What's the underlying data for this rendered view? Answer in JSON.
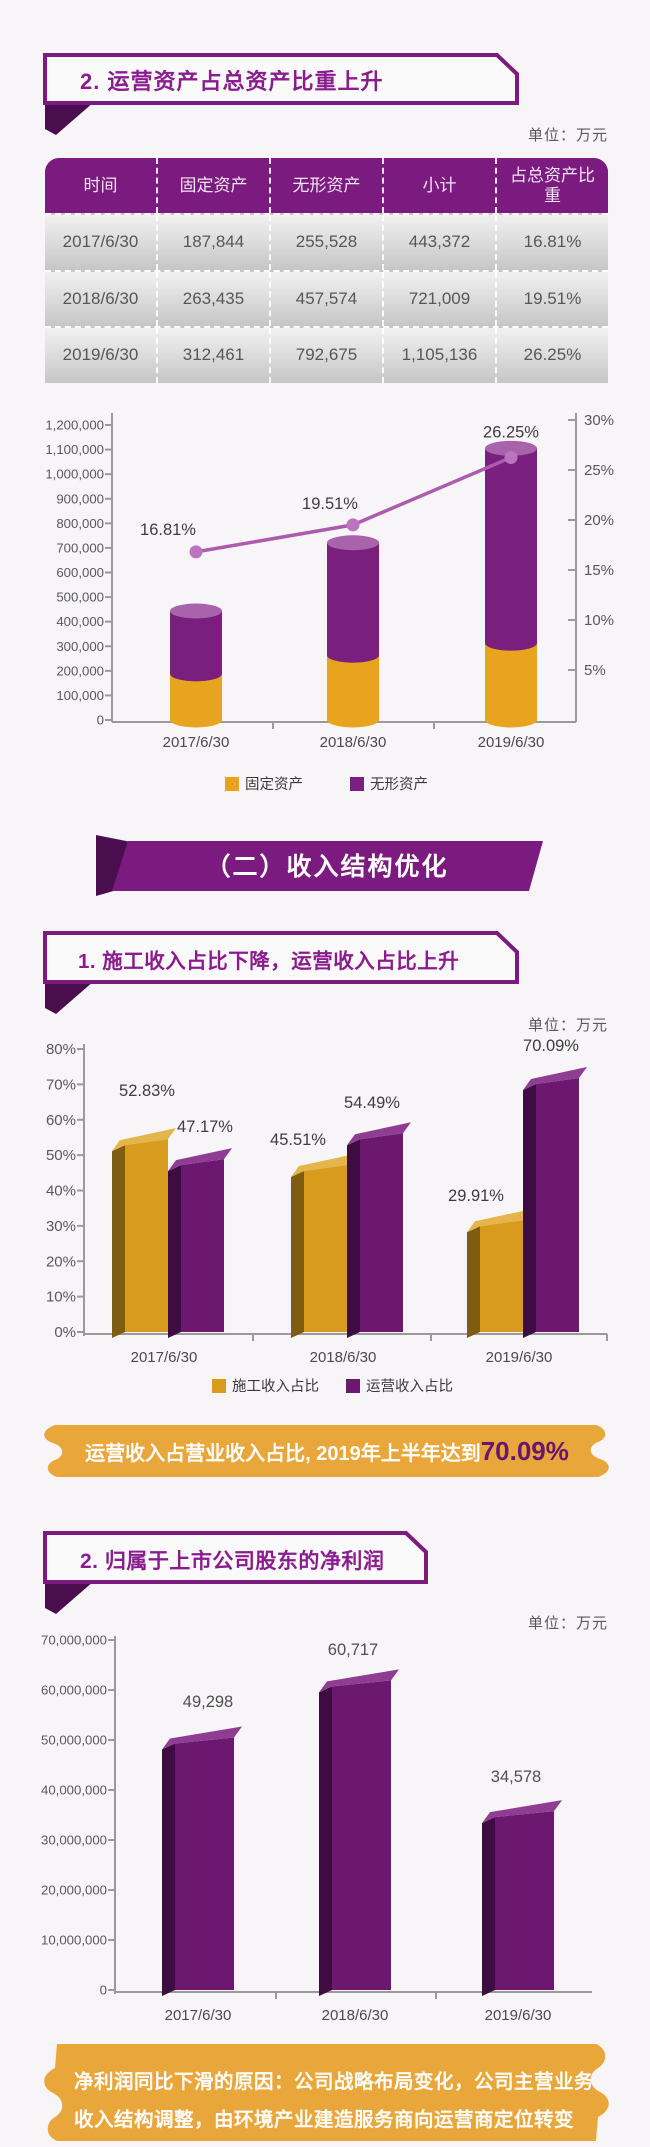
{
  "page": {
    "unit_label": "单位：万元"
  },
  "colors": {
    "brand_purple": "#7B1B7F",
    "banner_text_purple": "#8A1C8E",
    "fold_dark_purple": "#4A0E4E",
    "bar_gold": "#D89B1E",
    "bar_purple": "#6C1870",
    "cylinder_gold": "#E8A41F",
    "cylinder_purple": "#7A1F7D",
    "line_purple": "#AC5BAE",
    "callout_orange": "#E9A63A",
    "axis_gray": "#595959"
  },
  "section1": {
    "banner": "2. 运营资产占总资产比重上升",
    "unit": "单位：万元",
    "table": {
      "headers": [
        "时间",
        "固定资产",
        "无形资产",
        "小计",
        "占总资产比重"
      ],
      "rows": [
        [
          "2017/6/30",
          "187,844",
          "255,528",
          "443,372",
          "16.81%"
        ],
        [
          "2018/6/30",
          "263,435",
          "457,574",
          "721,009",
          "19.51%"
        ],
        [
          "2019/6/30",
          "312,461",
          "792,675",
          "1,105,136",
          "26.25%"
        ]
      ]
    }
  },
  "ribbon": {
    "title": "（二）收入结构优化"
  },
  "section2": {
    "banner": "1. 施工收入占比下降，运营收入占比上升",
    "unit": "单位：万元"
  },
  "callout1": {
    "text": "运营收入占营业收入占比, 2019年上半年达到",
    "highlight": "70.09%"
  },
  "section3": {
    "banner": "2. 归属于上市公司股东的净利润",
    "unit": "单位：万元"
  },
  "callout2": {
    "line1": "净利润同比下滑的原因：公司战略布局变化，公司主营业务",
    "line2": "收入结构调整，由环境产业建造服务商向运营商定位转变"
  },
  "chart_data": [
    {
      "id": "assets-combo",
      "type": "bar",
      "subtype": "stacked-cylinder-with-line",
      "categories": [
        "2017/6/30",
        "2018/6/30",
        "2019/6/30"
      ],
      "series": [
        {
          "name": "固定资产",
          "values": [
            187844,
            263435,
            312461
          ],
          "color": "#E8A41F"
        },
        {
          "name": "无形资产",
          "values": [
            255528,
            457574,
            792675
          ],
          "color": "#7A1F7D",
          "top_color": "#A963AC"
        }
      ],
      "line": {
        "name": "占总资产比重",
        "values": [
          16.81,
          19.51,
          26.25
        ],
        "labels": [
          "16.81%",
          "19.51%",
          "26.25%"
        ],
        "color": "#AC5BAE",
        "marker_color": "#BC74BE"
      },
      "left_axis": {
        "min": 0,
        "max": 1200000,
        "step": 100000
      },
      "right_axis": {
        "min": 0,
        "max": 30,
        "step": 5,
        "suffix": "%"
      },
      "legend": [
        "固定资产",
        "无形资产"
      ],
      "legend_position": "bottom",
      "grid": false
    },
    {
      "id": "revenue-share",
      "type": "bar",
      "subtype": "3d-clustered",
      "categories": [
        "2017/6/30",
        "2018/6/30",
        "2019/6/30"
      ],
      "series": [
        {
          "name": "施工收入占比",
          "values": [
            52.83,
            45.51,
            29.91
          ],
          "labels": [
            "52.83%",
            "45.51%",
            "29.91%"
          ],
          "color": "#D89B1E",
          "side_color": "#7E5C10",
          "top_color": "#E3B54A"
        },
        {
          "name": "运营收入占比",
          "values": [
            47.17,
            54.49,
            70.09
          ],
          "labels": [
            "47.17%",
            "54.49%",
            "70.09%"
          ],
          "color": "#6C1870",
          "side_color": "#3F0C42",
          "top_color": "#8E3D92"
        }
      ],
      "y_axis": {
        "min": 0,
        "max": 80,
        "step": 10,
        "suffix": "%"
      },
      "legend": [
        "施工收入占比",
        "运营收入占比"
      ],
      "legend_position": "bottom",
      "grid": false
    },
    {
      "id": "net-profit",
      "type": "bar",
      "subtype": "3d-single",
      "categories": [
        "2017/6/30",
        "2018/6/30",
        "2019/6/30"
      ],
      "series": [
        {
          "name": "归属于上市公司股东的净利润",
          "values": [
            49298,
            60717,
            34578
          ],
          "labels": [
            "49,298",
            "60,717",
            "34,578"
          ],
          "color": "#6C1870",
          "side_color": "#3F0C42",
          "top_color": "#8E3D92"
        }
      ],
      "y_axis": {
        "min": 0,
        "max": 70000000,
        "step": 10000000
      },
      "plot_value_multiplier": 1000,
      "grid": false
    }
  ]
}
